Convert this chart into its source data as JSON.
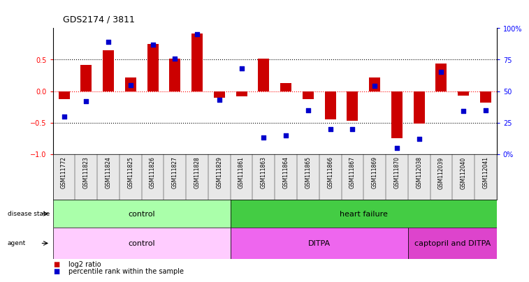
{
  "title": "GDS2174 / 3811",
  "samples": [
    "GSM111772",
    "GSM111823",
    "GSM111824",
    "GSM111825",
    "GSM111826",
    "GSM111827",
    "GSM111828",
    "GSM111829",
    "GSM111861",
    "GSM111863",
    "GSM111864",
    "GSM111865",
    "GSM111866",
    "GSM111867",
    "GSM111869",
    "GSM111870",
    "GSM112038",
    "GSM112039",
    "GSM112040",
    "GSM112041"
  ],
  "log2_ratio": [
    -0.13,
    0.42,
    0.65,
    0.22,
    0.75,
    0.52,
    0.92,
    -0.1,
    -0.08,
    0.52,
    0.13,
    -0.13,
    -0.45,
    -0.47,
    0.22,
    -0.75,
    -0.52,
    0.44,
    -0.07,
    -0.18
  ],
  "percentile_rank": [
    30,
    42,
    89,
    55,
    87,
    76,
    95,
    43,
    68,
    13,
    15,
    35,
    20,
    20,
    54,
    5,
    12,
    65,
    34,
    35
  ],
  "disease_state_groups": [
    {
      "label": "control",
      "start": 0,
      "end": 8,
      "color": "#aaffaa"
    },
    {
      "label": "heart failure",
      "start": 8,
      "end": 20,
      "color": "#44cc44"
    }
  ],
  "agent_groups": [
    {
      "label": "control",
      "start": 0,
      "end": 8,
      "color": "#ffccff"
    },
    {
      "label": "DITPA",
      "start": 8,
      "end": 16,
      "color": "#ee66ee"
    },
    {
      "label": "captopril and DITPA",
      "start": 16,
      "end": 20,
      "color": "#dd44cc"
    }
  ],
  "bar_color": "#cc0000",
  "dot_color": "#0000cc",
  "ylim_left": [
    -1,
    1
  ],
  "ylim_right": [
    0,
    100
  ],
  "left_yticks": [
    -1,
    -0.5,
    0,
    0.5
  ],
  "right_yticks": [
    0,
    25,
    50,
    75,
    100
  ],
  "right_yticklabels": [
    "0%",
    "25",
    "50",
    "75",
    "100%"
  ],
  "legend_items": [
    {
      "label": "log2 ratio",
      "color": "#cc0000"
    },
    {
      "label": "percentile rank within the sample",
      "color": "#0000cc"
    }
  ],
  "bg_color": "#e8e8e8"
}
